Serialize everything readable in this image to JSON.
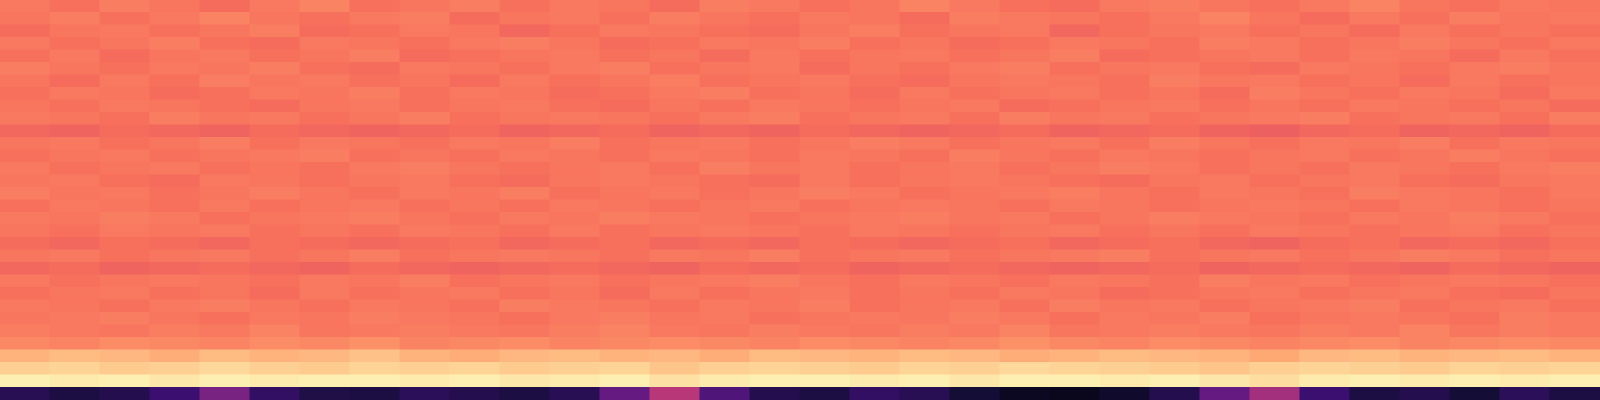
{
  "chart_data": {
    "type": "heatmap",
    "tick_labels": false,
    "zlim": [
      0,
      1
    ],
    "cells": [
      [
        0.72,
        0.7,
        0.73,
        0.71,
        0.69,
        0.72,
        0.74,
        0.7,
        0.71,
        0.73,
        0.7,
        0.72,
        0.71,
        0.69,
        0.73,
        0.72,
        0.7,
        0.71,
        0.74,
        0.72,
        0.7,
        0.69,
        0.72,
        0.73,
        0.71,
        0.7,
        0.72,
        0.74,
        0.71,
        0.7,
        0.72,
        0.71
      ],
      [
        0.71,
        0.73,
        0.7,
        0.72,
        0.74,
        0.71,
        0.7,
        0.72,
        0.73,
        0.69,
        0.71,
        0.72,
        0.7,
        0.73,
        0.71,
        0.7,
        0.72,
        0.71,
        0.69,
        0.73,
        0.72,
        0.71,
        0.7,
        0.72,
        0.74,
        0.71,
        0.69,
        0.72,
        0.7,
        0.73,
        0.71,
        0.72
      ],
      [
        0.69,
        0.71,
        0.72,
        0.7,
        0.71,
        0.73,
        0.69,
        0.7,
        0.72,
        0.71,
        0.68,
        0.7,
        0.72,
        0.71,
        0.7,
        0.69,
        0.71,
        0.73,
        0.7,
        0.71,
        0.72,
        0.68,
        0.7,
        0.71,
        0.72,
        0.7,
        0.71,
        0.69,
        0.72,
        0.7,
        0.71,
        0.7
      ],
      [
        0.72,
        0.7,
        0.71,
        0.73,
        0.7,
        0.69,
        0.72,
        0.71,
        0.7,
        0.72,
        0.73,
        0.71,
        0.69,
        0.7,
        0.72,
        0.71,
        0.73,
        0.7,
        0.71,
        0.69,
        0.7,
        0.72,
        0.71,
        0.7,
        0.73,
        0.72,
        0.7,
        0.71,
        0.73,
        0.71,
        0.7,
        0.72
      ],
      [
        0.7,
        0.72,
        0.69,
        0.71,
        0.72,
        0.7,
        0.71,
        0.73,
        0.69,
        0.7,
        0.71,
        0.72,
        0.7,
        0.71,
        0.69,
        0.72,
        0.7,
        0.71,
        0.72,
        0.7,
        0.71,
        0.73,
        0.69,
        0.7,
        0.71,
        0.72,
        0.7,
        0.72,
        0.71,
        0.69,
        0.72,
        0.7
      ],
      [
        0.73,
        0.71,
        0.7,
        0.72,
        0.71,
        0.73,
        0.7,
        0.69,
        0.72,
        0.71,
        0.7,
        0.72,
        0.73,
        0.7,
        0.71,
        0.72,
        0.69,
        0.71,
        0.7,
        0.72,
        0.73,
        0.7,
        0.71,
        0.72,
        0.7,
        0.69,
        0.72,
        0.71,
        0.7,
        0.72,
        0.73,
        0.71
      ],
      [
        0.71,
        0.69,
        0.72,
        0.7,
        0.73,
        0.71,
        0.72,
        0.7,
        0.71,
        0.69,
        0.72,
        0.7,
        0.71,
        0.73,
        0.7,
        0.71,
        0.72,
        0.7,
        0.69,
        0.71,
        0.72,
        0.71,
        0.7,
        0.73,
        0.71,
        0.72,
        0.7,
        0.71,
        0.69,
        0.72,
        0.7,
        0.71
      ],
      [
        0.7,
        0.72,
        0.71,
        0.69,
        0.7,
        0.72,
        0.71,
        0.73,
        0.7,
        0.72,
        0.71,
        0.69,
        0.7,
        0.72,
        0.73,
        0.7,
        0.71,
        0.69,
        0.72,
        0.7,
        0.71,
        0.72,
        0.7,
        0.71,
        0.69,
        0.73,
        0.71,
        0.7,
        0.72,
        0.71,
        0.69,
        0.72
      ],
      [
        0.71,
        0.7,
        0.72,
        0.71,
        0.7,
        0.69,
        0.71,
        0.72,
        0.7,
        0.71,
        0.72,
        0.7,
        0.69,
        0.71,
        0.7,
        0.72,
        0.71,
        0.7,
        0.71,
        0.72,
        0.69,
        0.7,
        0.71,
        0.72,
        0.7,
        0.71,
        0.7,
        0.72,
        0.71,
        0.7,
        0.71,
        0.69
      ],
      [
        0.72,
        0.71,
        0.7,
        0.73,
        0.71,
        0.72,
        0.7,
        0.71,
        0.73,
        0.7,
        0.71,
        0.72,
        0.71,
        0.7,
        0.72,
        0.73,
        0.7,
        0.71,
        0.72,
        0.7,
        0.73,
        0.71,
        0.72,
        0.7,
        0.71,
        0.72,
        0.73,
        0.7,
        0.71,
        0.72,
        0.7,
        0.73
      ],
      [
        0.68,
        0.67,
        0.69,
        0.68,
        0.67,
        0.69,
        0.68,
        0.67,
        0.68,
        0.69,
        0.67,
        0.68,
        0.69,
        0.67,
        0.68,
        0.67,
        0.69,
        0.68,
        0.67,
        0.68,
        0.69,
        0.67,
        0.68,
        0.69,
        0.67,
        0.66,
        0.68,
        0.69,
        0.67,
        0.68,
        0.67,
        0.69
      ],
      [
        0.71,
        0.72,
        0.7,
        0.71,
        0.73,
        0.7,
        0.72,
        0.71,
        0.7,
        0.72,
        0.71,
        0.73,
        0.7,
        0.71,
        0.72,
        0.7,
        0.71,
        0.73,
        0.72,
        0.7,
        0.71,
        0.72,
        0.7,
        0.73,
        0.71,
        0.7,
        0.72,
        0.71,
        0.73,
        0.7,
        0.72,
        0.71
      ],
      [
        0.7,
        0.71,
        0.72,
        0.7,
        0.71,
        0.72,
        0.73,
        0.7,
        0.71,
        0.7,
        0.72,
        0.71,
        0.7,
        0.72,
        0.71,
        0.7,
        0.72,
        0.71,
        0.7,
        0.73,
        0.71,
        0.7,
        0.72,
        0.71,
        0.7,
        0.71,
        0.72,
        0.7,
        0.71,
        0.73,
        0.71,
        0.7
      ],
      [
        0.72,
        0.7,
        0.71,
        0.72,
        0.7,
        0.71,
        0.7,
        0.72,
        0.73,
        0.71,
        0.7,
        0.71,
        0.72,
        0.7,
        0.73,
        0.71,
        0.72,
        0.7,
        0.71,
        0.72,
        0.7,
        0.71,
        0.73,
        0.72,
        0.7,
        0.71,
        0.7,
        0.72,
        0.71,
        0.7,
        0.72,
        0.73
      ],
      [
        0.71,
        0.72,
        0.7,
        0.69,
        0.72,
        0.71,
        0.7,
        0.71,
        0.72,
        0.7,
        0.69,
        0.71,
        0.72,
        0.71,
        0.7,
        0.69,
        0.72,
        0.7,
        0.71,
        0.72,
        0.71,
        0.7,
        0.69,
        0.71,
        0.72,
        0.7,
        0.71,
        0.72,
        0.7,
        0.69,
        0.71,
        0.72
      ],
      [
        0.73,
        0.71,
        0.72,
        0.7,
        0.71,
        0.73,
        0.71,
        0.7,
        0.72,
        0.71,
        0.73,
        0.7,
        0.71,
        0.72,
        0.7,
        0.71,
        0.73,
        0.72,
        0.7,
        0.71,
        0.72,
        0.73,
        0.71,
        0.7,
        0.72,
        0.71,
        0.7,
        0.73,
        0.72,
        0.71,
        0.7,
        0.72
      ],
      [
        0.7,
        0.72,
        0.71,
        0.7,
        0.72,
        0.7,
        0.71,
        0.72,
        0.7,
        0.71,
        0.7,
        0.72,
        0.71,
        0.7,
        0.71,
        0.72,
        0.7,
        0.71,
        0.72,
        0.71,
        0.7,
        0.72,
        0.71,
        0.7,
        0.71,
        0.72,
        0.71,
        0.7,
        0.72,
        0.71,
        0.7,
        0.71
      ],
      [
        0.72,
        0.71,
        0.73,
        0.72,
        0.7,
        0.71,
        0.72,
        0.73,
        0.71,
        0.7,
        0.72,
        0.71,
        0.73,
        0.72,
        0.71,
        0.7,
        0.71,
        0.72,
        0.73,
        0.71,
        0.72,
        0.7,
        0.71,
        0.73,
        0.72,
        0.71,
        0.7,
        0.72,
        0.71,
        0.73,
        0.72,
        0.7
      ],
      [
        0.71,
        0.7,
        0.72,
        0.71,
        0.72,
        0.7,
        0.71,
        0.7,
        0.72,
        0.71,
        0.7,
        0.72,
        0.7,
        0.71,
        0.72,
        0.71,
        0.7,
        0.72,
        0.71,
        0.7,
        0.71,
        0.72,
        0.7,
        0.71,
        0.7,
        0.72,
        0.71,
        0.7,
        0.71,
        0.72,
        0.7,
        0.71
      ],
      [
        0.69,
        0.68,
        0.7,
        0.69,
        0.68,
        0.7,
        0.69,
        0.68,
        0.69,
        0.7,
        0.68,
        0.69,
        0.7,
        0.68,
        0.69,
        0.68,
        0.7,
        0.69,
        0.68,
        0.69,
        0.7,
        0.68,
        0.69,
        0.7,
        0.68,
        0.67,
        0.69,
        0.7,
        0.68,
        0.69,
        0.68,
        0.7
      ],
      [
        0.71,
        0.72,
        0.7,
        0.71,
        0.72,
        0.7,
        0.71,
        0.73,
        0.7,
        0.71,
        0.72,
        0.71,
        0.7,
        0.72,
        0.71,
        0.73,
        0.7,
        0.71,
        0.72,
        0.7,
        0.71,
        0.72,
        0.73,
        0.7,
        0.71,
        0.72,
        0.7,
        0.71,
        0.73,
        0.72,
        0.7,
        0.71
      ],
      [
        0.68,
        0.69,
        0.67,
        0.68,
        0.69,
        0.68,
        0.67,
        0.69,
        0.68,
        0.67,
        0.68,
        0.69,
        0.68,
        0.67,
        0.69,
        0.68,
        0.69,
        0.67,
        0.68,
        0.69,
        0.68,
        0.67,
        0.68,
        0.69,
        0.67,
        0.68,
        0.69,
        0.68,
        0.67,
        0.69,
        0.68,
        0.67
      ],
      [
        0.72,
        0.7,
        0.71,
        0.72,
        0.71,
        0.7,
        0.72,
        0.71,
        0.73,
        0.7,
        0.71,
        0.72,
        0.7,
        0.71,
        0.72,
        0.73,
        0.71,
        0.7,
        0.72,
        0.71,
        0.7,
        0.72,
        0.71,
        0.7,
        0.73,
        0.71,
        0.72,
        0.7,
        0.71,
        0.72,
        0.71,
        0.7
      ],
      [
        0.7,
        0.71,
        0.72,
        0.7,
        0.71,
        0.69,
        0.72,
        0.7,
        0.71,
        0.72,
        0.7,
        0.71,
        0.69,
        0.72,
        0.7,
        0.71,
        0.72,
        0.7,
        0.71,
        0.7,
        0.72,
        0.71,
        0.69,
        0.7,
        0.71,
        0.72,
        0.7,
        0.71,
        0.72,
        0.7,
        0.69,
        0.71
      ],
      [
        0.72,
        0.71,
        0.7,
        0.72,
        0.73,
        0.71,
        0.7,
        0.72,
        0.71,
        0.7,
        0.73,
        0.72,
        0.71,
        0.7,
        0.72,
        0.71,
        0.73,
        0.7,
        0.71,
        0.72,
        0.7,
        0.73,
        0.71,
        0.72,
        0.7,
        0.71,
        0.72,
        0.73,
        0.7,
        0.71,
        0.72,
        0.7
      ],
      [
        0.71,
        0.72,
        0.73,
        0.71,
        0.7,
        0.72,
        0.71,
        0.73,
        0.72,
        0.71,
        0.7,
        0.72,
        0.73,
        0.71,
        0.72,
        0.7,
        0.71,
        0.72,
        0.71,
        0.73,
        0.72,
        0.7,
        0.72,
        0.71,
        0.73,
        0.7,
        0.71,
        0.72,
        0.71,
        0.7,
        0.73,
        0.72
      ],
      [
        0.73,
        0.72,
        0.71,
        0.73,
        0.72,
        0.74,
        0.71,
        0.72,
        0.73,
        0.72,
        0.71,
        0.73,
        0.74,
        0.72,
        0.71,
        0.73,
        0.72,
        0.71,
        0.73,
        0.72,
        0.74,
        0.71,
        0.72,
        0.73,
        0.72,
        0.71,
        0.73,
        0.72,
        0.74,
        0.71,
        0.73,
        0.72
      ],
      [
        0.75,
        0.74,
        0.76,
        0.75,
        0.74,
        0.76,
        0.75,
        0.77,
        0.74,
        0.75,
        0.76,
        0.74,
        0.75,
        0.76,
        0.75,
        0.74,
        0.76,
        0.75,
        0.74,
        0.75,
        0.77,
        0.75,
        0.74,
        0.76,
        0.75,
        0.74,
        0.75,
        0.76,
        0.74,
        0.75,
        0.76,
        0.75
      ],
      [
        0.84,
        0.86,
        0.85,
        0.83,
        0.86,
        0.84,
        0.85,
        0.87,
        0.84,
        0.83,
        0.85,
        0.86,
        0.84,
        0.85,
        0.83,
        0.86,
        0.85,
        0.84,
        0.86,
        0.85,
        0.83,
        0.84,
        0.86,
        0.85,
        0.84,
        0.82,
        0.85,
        0.86,
        0.84,
        0.85,
        0.86,
        0.84
      ],
      [
        0.9,
        0.91,
        0.89,
        0.9,
        0.92,
        0.9,
        0.89,
        0.91,
        0.9,
        0.91,
        0.89,
        0.9,
        0.91,
        0.88,
        0.9,
        0.91,
        0.9,
        0.89,
        0.91,
        0.9,
        0.92,
        0.91,
        0.9,
        0.89,
        0.88,
        0.9,
        0.91,
        0.9,
        0.89,
        0.91,
        0.9,
        0.91
      ],
      [
        0.97,
        0.96,
        0.97,
        0.95,
        0.97,
        0.96,
        0.97,
        0.97,
        0.96,
        0.97,
        0.95,
        0.96,
        0.97,
        0.94,
        0.96,
        0.97,
        0.97,
        0.96,
        0.97,
        0.95,
        0.97,
        0.97,
        0.96,
        0.97,
        0.95,
        0.93,
        0.96,
        0.97,
        0.96,
        0.97,
        0.96,
        0.97
      ],
      [
        0.15,
        0.12,
        0.14,
        0.2,
        0.35,
        0.18,
        0.13,
        0.12,
        0.16,
        0.14,
        0.12,
        0.15,
        0.3,
        0.5,
        0.25,
        0.14,
        0.12,
        0.18,
        0.15,
        0.1,
        0.06,
        0.05,
        0.08,
        0.14,
        0.3,
        0.45,
        0.2,
        0.12,
        0.14,
        0.1,
        0.16,
        0.12
      ]
    ]
  }
}
